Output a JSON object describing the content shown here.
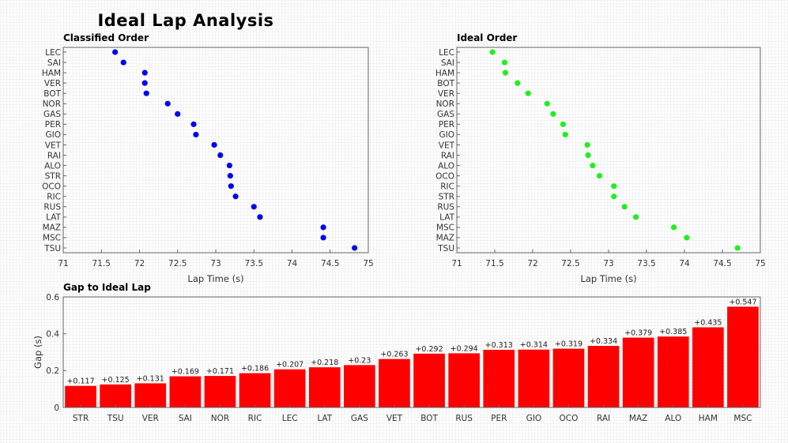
{
  "title": "Ideal Lap Analysis",
  "chart_data": [
    {
      "type": "scatter",
      "title": "Classified Order",
      "xlabel": "Lap Time (s)",
      "xlim": [
        71,
        75
      ],
      "xticks": [
        "71",
        "71.5",
        "72",
        "72.5",
        "73",
        "73.5",
        "74",
        "74.5",
        "75"
      ],
      "categories": [
        "LEC",
        "SAI",
        "HAM",
        "VER",
        "BOT",
        "NOR",
        "GAS",
        "PER",
        "GIO",
        "VET",
        "RAI",
        "ALO",
        "STR",
        "OCO",
        "RIC",
        "RUS",
        "LAT",
        "MAZ",
        "MSC",
        "TSU"
      ],
      "values": [
        71.68,
        71.79,
        72.07,
        72.07,
        72.09,
        72.37,
        72.5,
        72.71,
        72.74,
        72.98,
        73.06,
        73.18,
        73.19,
        73.2,
        73.26,
        73.5,
        73.58,
        74.41,
        74.41,
        74.82
      ],
      "color": "#0000ee"
    },
    {
      "type": "scatter",
      "title": "Ideal Order",
      "xlabel": "Lap Time (s)",
      "xlim": [
        71,
        75
      ],
      "xticks": [
        "71",
        "71.5",
        "72",
        "72.5",
        "73",
        "73.5",
        "74",
        "74.5",
        "75"
      ],
      "categories": [
        "LEC",
        "SAI",
        "HAM",
        "BOT",
        "VER",
        "NOR",
        "GAS",
        "PER",
        "GIO",
        "VET",
        "RAI",
        "ALO",
        "OCO",
        "RIC",
        "STR",
        "RUS",
        "LAT",
        "MSC",
        "MAZ",
        "TSU"
      ],
      "values": [
        71.47,
        71.63,
        71.64,
        71.8,
        71.94,
        72.19,
        72.27,
        72.4,
        72.43,
        72.72,
        72.73,
        72.79,
        72.88,
        73.07,
        73.07,
        73.21,
        73.36,
        73.86,
        74.03,
        74.7
      ],
      "color": "#22ee22"
    },
    {
      "type": "bar",
      "title": "Gap to Ideal Lap",
      "ylabel": "Gap (s)",
      "ylim": [
        0,
        0.6
      ],
      "yticks": [
        "0",
        "0.2",
        "0.4",
        "0.6"
      ],
      "categories": [
        "STR",
        "TSU",
        "VER",
        "SAI",
        "NOR",
        "RIC",
        "LEC",
        "LAT",
        "GAS",
        "VET",
        "BOT",
        "RUS",
        "PER",
        "GIO",
        "OCO",
        "RAI",
        "MAZ",
        "ALO",
        "HAM",
        "MSC"
      ],
      "values": [
        0.117,
        0.125,
        0.131,
        0.169,
        0.171,
        0.186,
        0.207,
        0.218,
        0.23,
        0.263,
        0.292,
        0.294,
        0.313,
        0.314,
        0.319,
        0.334,
        0.379,
        0.385,
        0.435,
        0.547
      ],
      "value_labels": [
        "+0.117",
        "+0.125",
        "+0.131",
        "+0.169",
        "+0.171",
        "+0.186",
        "+0.207",
        "+0.218",
        "+0.23",
        "+0.263",
        "+0.292",
        "+0.294",
        "+0.313",
        "+0.314",
        "+0.319",
        "+0.334",
        "+0.379",
        "+0.385",
        "+0.435",
        "+0.547"
      ],
      "color": "#ff0000"
    }
  ]
}
